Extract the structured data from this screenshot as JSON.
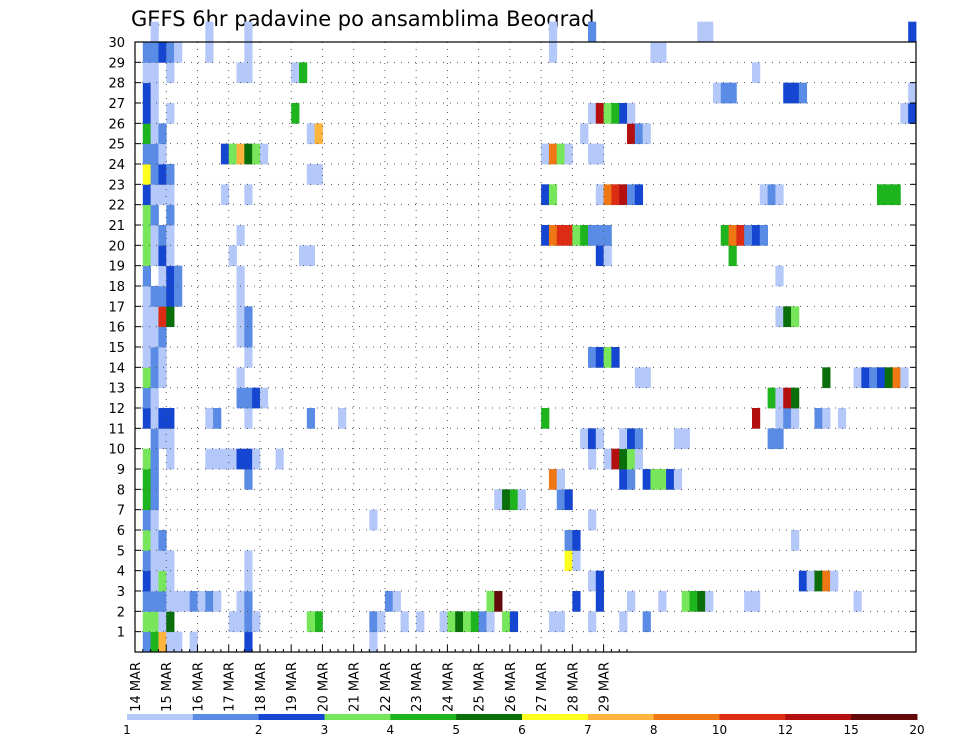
{
  "chart_data": {
    "type": "heatmap",
    "title": "GEFS 6hr padavine po ansamblima Beograd",
    "x_ticks": [
      "14 MAR",
      "15 MAR",
      "16 MAR",
      "17 MAR",
      "18 MAR",
      "19 MAR",
      "20 MAR",
      "21 MAR",
      "22 MAR",
      "23 MAR",
      "24 MAR",
      "25 MAR",
      "26 MAR",
      "27 MAR",
      "28 MAR",
      "29 MAR"
    ],
    "y_ticks": [
      1,
      2,
      3,
      4,
      5,
      6,
      7,
      8,
      9,
      10,
      11,
      12,
      13,
      14,
      15,
      16,
      17,
      18,
      19,
      20,
      21,
      22,
      23,
      24,
      25,
      26,
      27,
      28,
      29,
      30
    ],
    "grid": true,
    "time_step_hours": 6,
    "colorbar": {
      "labels": [
        "1",
        "2",
        "3",
        "4",
        "5",
        "6",
        "7",
        "8",
        "10",
        "12",
        "15",
        "20"
      ],
      "colors": [
        "#b4c8fa",
        "#5a8ce6",
        "#1446d2",
        "#78e65a",
        "#1eb41e",
        "#0a6e0a",
        "#ffff1e",
        "#ffb43c",
        "#f07814",
        "#dc2d14",
        "#b40f0f",
        "#640a0a"
      ]
    },
    "cells": [
      [
        0,
        1,
        2
      ],
      [
        0,
        2,
        5
      ],
      [
        0,
        3,
        8
      ],
      [
        0,
        4,
        1
      ],
      [
        0,
        5,
        1
      ],
      [
        0,
        7,
        1
      ],
      [
        0,
        14,
        3
      ],
      [
        0,
        30,
        1
      ],
      [
        1,
        1,
        4
      ],
      [
        1,
        2,
        4
      ],
      [
        1,
        3,
        1
      ],
      [
        1,
        4,
        6
      ],
      [
        1,
        12,
        1
      ],
      [
        1,
        13,
        1
      ],
      [
        1,
        14,
        2
      ],
      [
        1,
        15,
        1
      ],
      [
        2,
        1,
        1
      ],
      [
        2,
        2,
        1
      ],
      [
        2,
        3,
        2
      ],
      [
        2,
        4,
        1
      ],
      [
        2,
        5,
        1
      ],
      [
        2,
        6,
        1
      ],
      [
        2,
        7,
        2
      ],
      [
        2,
        8,
        1
      ],
      [
        2,
        9,
        2
      ],
      [
        2,
        10,
        1
      ],
      [
        1,
        30,
        2
      ],
      [
        1,
        23,
        5
      ],
      [
        1,
        22,
        4
      ],
      [
        1,
        31,
        1
      ],
      [
        1,
        34,
        1
      ],
      [
        1,
        36,
        1
      ],
      [
        1,
        39,
        1
      ],
      [
        1,
        40,
        4
      ],
      [
        1,
        41,
        6
      ],
      [
        1,
        42,
        4
      ],
      [
        1,
        43,
        5
      ],
      [
        1,
        44,
        2
      ],
      [
        1,
        45,
        1
      ],
      [
        1,
        47,
        4
      ],
      [
        1,
        48,
        3
      ],
      [
        1,
        53,
        1
      ],
      [
        1,
        54,
        1
      ],
      [
        1,
        58,
        1
      ],
      [
        1,
        62,
        1
      ],
      [
        1,
        65,
        2
      ],
      [
        2,
        1,
        2
      ],
      [
        2,
        2,
        2
      ],
      [
        2,
        13,
        1
      ],
      [
        2,
        14,
        2
      ],
      [
        2,
        32,
        2
      ],
      [
        2,
        33,
        1
      ],
      [
        2,
        45,
        4
      ],
      [
        2,
        46,
        12
      ],
      [
        2,
        56,
        3
      ],
      [
        2,
        59,
        3
      ],
      [
        2,
        63,
        1
      ],
      [
        2,
        67,
        1
      ],
      [
        2,
        70,
        4
      ],
      [
        2,
        71,
        5
      ],
      [
        2,
        72,
        6
      ],
      [
        2,
        73,
        1
      ],
      [
        2,
        78,
        1
      ],
      [
        2,
        79,
        1
      ],
      [
        2,
        92,
        1
      ],
      [
        2,
        116,
        1
      ],
      [
        2,
        117,
        2
      ],
      [
        3,
        1,
        3
      ],
      [
        3,
        2,
        1
      ],
      [
        3,
        3,
        4
      ],
      [
        3,
        4,
        1
      ],
      [
        3,
        14,
        1
      ],
      [
        3,
        58,
        1
      ],
      [
        3,
        59,
        3
      ],
      [
        3,
        85,
        3
      ],
      [
        3,
        86,
        1
      ],
      [
        3,
        87,
        6
      ],
      [
        3,
        88,
        9
      ],
      [
        3,
        89,
        1
      ],
      [
        4,
        1,
        2
      ],
      [
        4,
        2,
        1
      ],
      [
        4,
        3,
        1
      ],
      [
        4,
        4,
        1
      ],
      [
        4,
        14,
        1
      ],
      [
        4,
        55,
        7
      ],
      [
        4,
        56,
        1
      ],
      [
        5,
        1,
        4
      ],
      [
        5,
        2,
        1
      ],
      [
        5,
        3,
        2
      ],
      [
        5,
        55,
        2
      ],
      [
        5,
        56,
        3
      ],
      [
        5,
        84,
        1
      ],
      [
        6,
        1,
        2
      ],
      [
        6,
        2,
        1
      ],
      [
        6,
        30,
        1
      ],
      [
        6,
        58,
        1
      ],
      [
        7,
        1,
        5
      ],
      [
        7,
        2,
        2
      ],
      [
        7,
        46,
        1
      ],
      [
        7,
        47,
        6
      ],
      [
        7,
        48,
        5
      ],
      [
        7,
        49,
        1
      ],
      [
        7,
        54,
        2
      ],
      [
        7,
        55,
        3
      ],
      [
        8,
        1,
        5
      ],
      [
        8,
        2,
        2
      ],
      [
        8,
        14,
        2
      ],
      [
        8,
        53,
        9
      ],
      [
        8,
        54,
        1
      ],
      [
        8,
        62,
        3
      ],
      [
        8,
        63,
        2
      ],
      [
        8,
        65,
        3
      ],
      [
        8,
        66,
        4
      ],
      [
        8,
        67,
        4
      ],
      [
        8,
        68,
        3
      ],
      [
        8,
        69,
        1
      ],
      [
        9,
        1,
        4
      ],
      [
        9,
        2,
        2
      ],
      [
        9,
        4,
        1
      ],
      [
        9,
        9,
        1
      ],
      [
        9,
        10,
        1
      ],
      [
        9,
        11,
        1
      ],
      [
        9,
        12,
        1
      ],
      [
        9,
        13,
        3
      ],
      [
        9,
        14,
        3
      ],
      [
        9,
        15,
        1
      ],
      [
        9,
        18,
        1
      ],
      [
        9,
        58,
        1
      ],
      [
        9,
        60,
        1
      ],
      [
        9,
        61,
        11
      ],
      [
        9,
        62,
        6
      ],
      [
        9,
        63,
        4
      ],
      [
        9,
        64,
        1
      ],
      [
        10,
        2,
        2
      ],
      [
        10,
        3,
        1
      ],
      [
        10,
        4,
        1
      ],
      [
        10,
        57,
        1
      ],
      [
        10,
        58,
        3
      ],
      [
        10,
        59,
        1
      ],
      [
        10,
        62,
        1
      ],
      [
        10,
        63,
        3
      ],
      [
        10,
        64,
        2
      ],
      [
        10,
        69,
        1
      ],
      [
        10,
        70,
        1
      ],
      [
        10,
        81,
        2
      ],
      [
        10,
        82,
        2
      ],
      [
        11,
        1,
        3
      ],
      [
        11,
        2,
        1
      ],
      [
        11,
        3,
        3
      ],
      [
        11,
        4,
        3
      ],
      [
        11,
        9,
        1
      ],
      [
        11,
        10,
        2
      ],
      [
        11,
        14,
        1
      ],
      [
        11,
        22,
        2
      ],
      [
        11,
        26,
        1
      ],
      [
        11,
        52,
        5
      ],
      [
        11,
        79,
        11
      ],
      [
        11,
        82,
        1
      ],
      [
        11,
        83,
        2
      ],
      [
        11,
        84,
        1
      ],
      [
        11,
        87,
        2
      ],
      [
        11,
        88,
        1
      ],
      [
        11,
        90,
        1
      ],
      [
        12,
        1,
        2
      ],
      [
        12,
        2,
        1
      ],
      [
        12,
        13,
        2
      ],
      [
        12,
        14,
        2
      ],
      [
        12,
        15,
        3
      ],
      [
        12,
        16,
        1
      ],
      [
        12,
        81,
        5
      ],
      [
        12,
        82,
        1
      ],
      [
        12,
        83,
        11
      ],
      [
        12,
        84,
        6
      ],
      [
        13,
        1,
        4
      ],
      [
        13,
        2,
        2
      ],
      [
        13,
        3,
        1
      ],
      [
        13,
        13,
        1
      ],
      [
        13,
        64,
        1
      ],
      [
        13,
        65,
        1
      ],
      [
        13,
        88,
        6
      ],
      [
        13,
        92,
        1
      ],
      [
        13,
        93,
        3
      ],
      [
        13,
        94,
        2
      ],
      [
        13,
        95,
        3
      ],
      [
        13,
        96,
        6
      ],
      [
        13,
        97,
        9
      ],
      [
        13,
        98,
        1
      ],
      [
        14,
        1,
        1
      ],
      [
        14,
        2,
        2
      ],
      [
        14,
        3,
        1
      ],
      [
        14,
        14,
        1
      ],
      [
        14,
        58,
        2
      ],
      [
        14,
        59,
        3
      ],
      [
        14,
        60,
        4
      ],
      [
        14,
        61,
        3
      ],
      [
        15,
        1,
        1
      ],
      [
        15,
        2,
        1
      ],
      [
        15,
        3,
        2
      ],
      [
        15,
        13,
        1
      ],
      [
        15,
        14,
        2
      ],
      [
        16,
        1,
        1
      ],
      [
        16,
        2,
        1
      ],
      [
        16,
        3,
        10
      ],
      [
        16,
        4,
        6
      ],
      [
        16,
        13,
        1
      ],
      [
        16,
        14,
        2
      ],
      [
        16,
        82,
        1
      ],
      [
        16,
        83,
        6
      ],
      [
        16,
        84,
        4
      ],
      [
        17,
        1,
        1
      ],
      [
        17,
        2,
        2
      ],
      [
        17,
        3,
        2
      ],
      [
        17,
        4,
        3
      ],
      [
        17,
        5,
        2
      ],
      [
        17,
        13,
        1
      ],
      [
        18,
        1,
        2
      ],
      [
        18,
        3,
        1
      ],
      [
        18,
        4,
        3
      ],
      [
        18,
        5,
        2
      ],
      [
        18,
        13,
        1
      ],
      [
        18,
        82,
        1
      ],
      [
        19,
        1,
        4
      ],
      [
        19,
        2,
        1
      ],
      [
        19,
        3,
        3
      ],
      [
        19,
        4,
        1
      ],
      [
        19,
        12,
        1
      ],
      [
        19,
        21,
        1
      ],
      [
        19,
        22,
        1
      ],
      [
        19,
        59,
        3
      ],
      [
        19,
        60,
        1
      ],
      [
        19,
        76,
        5
      ],
      [
        20,
        1,
        4
      ],
      [
        20,
        2,
        1
      ],
      [
        20,
        3,
        2
      ],
      [
        20,
        4,
        1
      ],
      [
        20,
        13,
        1
      ],
      [
        20,
        52,
        3
      ],
      [
        20,
        53,
        9
      ],
      [
        20,
        54,
        10
      ],
      [
        20,
        55,
        10
      ],
      [
        20,
        56,
        4
      ],
      [
        20,
        57,
        5
      ],
      [
        20,
        58,
        2
      ],
      [
        20,
        59,
        2
      ],
      [
        20,
        60,
        2
      ],
      [
        20,
        75,
        5
      ],
      [
        20,
        76,
        9
      ],
      [
        20,
        77,
        10
      ],
      [
        20,
        78,
        2
      ],
      [
        20,
        79,
        3
      ],
      [
        20,
        80,
        2
      ],
      [
        21,
        1,
        4
      ],
      [
        21,
        2,
        2
      ],
      [
        21,
        4,
        2
      ],
      [
        22,
        1,
        3
      ],
      [
        22,
        2,
        1
      ],
      [
        22,
        3,
        1
      ],
      [
        22,
        4,
        1
      ],
      [
        22,
        11,
        1
      ],
      [
        22,
        14,
        1
      ],
      [
        22,
        52,
        3
      ],
      [
        22,
        53,
        4
      ],
      [
        22,
        59,
        1
      ],
      [
        22,
        60,
        9
      ],
      [
        22,
        61,
        10
      ],
      [
        22,
        62,
        11
      ],
      [
        22,
        63,
        2
      ],
      [
        22,
        64,
        3
      ],
      [
        22,
        80,
        1
      ],
      [
        22,
        81,
        2
      ],
      [
        22,
        82,
        1
      ],
      [
        22,
        95,
        5
      ],
      [
        22,
        96,
        5
      ],
      [
        22,
        97,
        5
      ],
      [
        23,
        1,
        7
      ],
      [
        23,
        2,
        2
      ],
      [
        23,
        3,
        3
      ],
      [
        23,
        4,
        2
      ],
      [
        23,
        22,
        1
      ],
      [
        23,
        23,
        1
      ],
      [
        24,
        1,
        2
      ],
      [
        24,
        2,
        2
      ],
      [
        24,
        3,
        1
      ],
      [
        24,
        11,
        3
      ],
      [
        24,
        12,
        4
      ],
      [
        24,
        13,
        8
      ],
      [
        24,
        14,
        6
      ],
      [
        24,
        15,
        4
      ],
      [
        24,
        16,
        1
      ],
      [
        24,
        52,
        1
      ],
      [
        24,
        53,
        9
      ],
      [
        24,
        54,
        4
      ],
      [
        24,
        55,
        1
      ],
      [
        24,
        58,
        1
      ],
      [
        24,
        59,
        1
      ],
      [
        25,
        1,
        5
      ],
      [
        25,
        2,
        1
      ],
      [
        25,
        3,
        2
      ],
      [
        25,
        22,
        1
      ],
      [
        25,
        23,
        8
      ],
      [
        25,
        57,
        1
      ],
      [
        25,
        63,
        11
      ],
      [
        25,
        64,
        2
      ],
      [
        25,
        65,
        1
      ],
      [
        26,
        1,
        3
      ],
      [
        26,
        2,
        1
      ],
      [
        26,
        4,
        1
      ],
      [
        26,
        20,
        5
      ],
      [
        26,
        58,
        1
      ],
      [
        26,
        59,
        11
      ],
      [
        26,
        60,
        4
      ],
      [
        26,
        61,
        5
      ],
      [
        26,
        62,
        3
      ],
      [
        26,
        63,
        1
      ],
      [
        26,
        98,
        1
      ],
      [
        26,
        99,
        3
      ],
      [
        27,
        1,
        3
      ],
      [
        27,
        2,
        1
      ],
      [
        27,
        74,
        1
      ],
      [
        27,
        75,
        2
      ],
      [
        27,
        76,
        2
      ],
      [
        27,
        83,
        3
      ],
      [
        27,
        84,
        3
      ],
      [
        27,
        85,
        2
      ],
      [
        27,
        99,
        1
      ],
      [
        28,
        1,
        1
      ],
      [
        28,
        2,
        1
      ],
      [
        28,
        4,
        1
      ],
      [
        28,
        13,
        1
      ],
      [
        28,
        14,
        1
      ],
      [
        28,
        20,
        1
      ],
      [
        28,
        21,
        5
      ],
      [
        28,
        79,
        1
      ],
      [
        29,
        1,
        2
      ],
      [
        29,
        2,
        2
      ],
      [
        29,
        3,
        3
      ],
      [
        29,
        4,
        2
      ],
      [
        29,
        5,
        1
      ],
      [
        29,
        9,
        1
      ],
      [
        29,
        14,
        1
      ],
      [
        29,
        53,
        1
      ],
      [
        29,
        66,
        1
      ],
      [
        29,
        67,
        1
      ],
      [
        30,
        2,
        1
      ],
      [
        30,
        9,
        1
      ],
      [
        30,
        14,
        1
      ],
      [
        30,
        53,
        1
      ],
      [
        30,
        58,
        2
      ],
      [
        30,
        72,
        1
      ],
      [
        30,
        73,
        1
      ],
      [
        30,
        99,
        3
      ]
    ]
  }
}
